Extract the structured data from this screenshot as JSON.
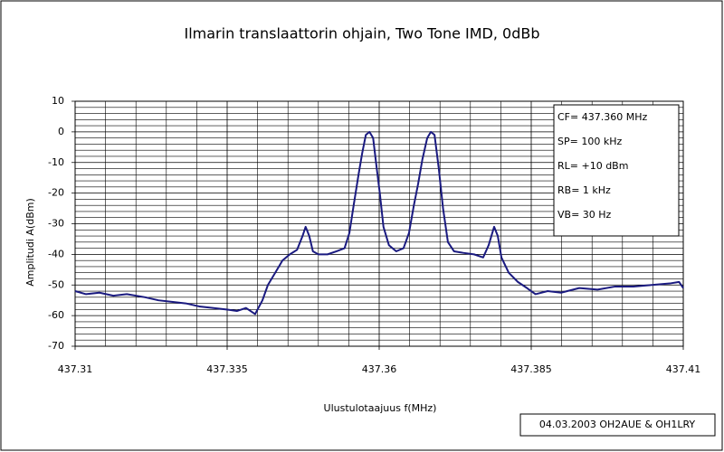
{
  "chart_data": {
    "type": "line",
    "title": "Ilmarin translaattorin ohjain, Two Tone IMD, 0dBb",
    "xlabel": "Ulustulotaajuus f(MHz)",
    "ylabel": "Amplitudi A(dBm)",
    "annotations": [
      "CF= 437.360 MHz",
      "SP= 100 kHz",
      "RL= +10 dBm",
      "RB= 1 kHz",
      "VB= 30 Hz"
    ],
    "footer": "04.03.2003 OH2AUE & OH1LRY",
    "xlim": [
      437.31,
      437.41
    ],
    "xticks": [
      437.31,
      437.335,
      437.36,
      437.385,
      437.41
    ],
    "ylim": [
      -70,
      10
    ],
    "yticks": [
      -70,
      -60,
      -50,
      -40,
      -30,
      -20,
      -10,
      0,
      10
    ],
    "xgrid": [
      437.315,
      437.32,
      437.325,
      437.33,
      437.34,
      437.345,
      437.35,
      437.355,
      437.365,
      437.37,
      437.375,
      437.38,
      437.39,
      437.395,
      437.4,
      437.405
    ],
    "ygrid": [
      -68,
      -66,
      -64,
      -62,
      -58,
      -56,
      -54,
      -52,
      -48,
      -46,
      -44,
      -42,
      -38,
      -36,
      -34,
      -32,
      -28,
      -26,
      -24,
      -22,
      -18,
      -16,
      -14,
      -12,
      -8,
      -6,
      -4,
      -2,
      2,
      4,
      6,
      8
    ],
    "x": [
      437.31,
      437.3118,
      437.314,
      437.3163,
      437.3185,
      437.3215,
      437.3237,
      437.3259,
      437.3282,
      437.3304,
      437.3326,
      437.3349,
      437.3366,
      437.3381,
      437.3396,
      437.3408,
      437.3417,
      437.3429,
      437.3441,
      437.3453,
      437.3465,
      437.3474,
      437.3479,
      437.3485,
      437.3491,
      437.35,
      437.3515,
      437.353,
      437.3543,
      437.3551,
      437.3558,
      437.3566,
      437.3572,
      437.3578,
      437.3584,
      437.359,
      437.3596,
      437.3601,
      437.3607,
      437.3616,
      437.3628,
      437.364,
      437.3649,
      437.3657,
      437.3664,
      437.3671,
      437.3679,
      437.3685,
      437.3691,
      437.3698,
      437.3705,
      437.3713,
      437.3723,
      437.3738,
      437.3756,
      437.3771,
      437.378,
      437.3789,
      437.3795,
      437.3801,
      437.3813,
      437.3828,
      437.3843,
      437.3857,
      437.3877,
      437.3899,
      437.3929,
      437.3959,
      437.3988,
      437.4018,
      437.4048,
      437.4078,
      437.4093,
      437.41
    ],
    "series": [
      {
        "color": "#1a1a80",
        "values": [
          -52,
          -53,
          -52.5,
          -53.5,
          -53,
          -54,
          -55,
          -55.5,
          -56,
          -57,
          -57.5,
          -58,
          -58.5,
          -57.5,
          -59.5,
          -55,
          -50,
          -46,
          -42,
          -40,
          -38.5,
          -34,
          -31,
          -34,
          -39,
          -40,
          -40,
          -39,
          -38,
          -33,
          -24,
          -14,
          -7,
          -1,
          0,
          -2,
          -12,
          -20,
          -31,
          -37,
          -39,
          -38,
          -33,
          -24,
          -17,
          -9,
          -2,
          0,
          -1,
          -12,
          -25,
          -36,
          -39,
          -39.5,
          -40,
          -41,
          -37,
          -31,
          -34,
          -41,
          -46,
          -49,
          -51,
          -53,
          -52,
          -52.5,
          -51,
          -51.5,
          -50.5,
          -50.5,
          -50,
          -49.5,
          -49,
          -51
        ]
      }
    ]
  }
}
